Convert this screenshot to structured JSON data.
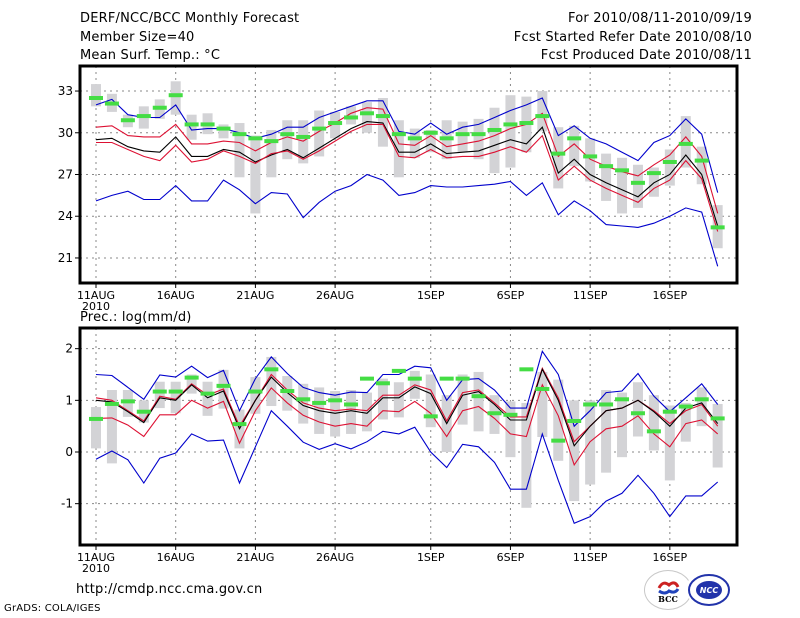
{
  "header": {
    "title": "DERF/NCC/BCC Monthly Forecast",
    "member_size": "Member Size=40",
    "variable_top": "Mean Surf. Temp.: °C",
    "for_range": "For 2010/08/11-2010/09/19",
    "started_date": "Fcst Started Refer Date 2010/08/10",
    "produced_date": "Fcst Produced Date 2010/08/11"
  },
  "footer": {
    "url": "http://cmdp.ncc.cma.gov.cn",
    "grads_credit": "GrADS: COLA/IGES",
    "logo_left": "BCC",
    "logo_right": "NCC"
  },
  "colors": {
    "max_min": "#0000cc",
    "spread": "#dd1133",
    "mean": "#000000",
    "box": "#d3d3d6",
    "marker": "#44dd44",
    "grid": "#888888"
  },
  "chart_data": [
    {
      "type": "line",
      "title": "Mean Surf. Temp.: °C",
      "xlabel": "",
      "ylabel": "°C",
      "ylim": [
        19.2,
        34.8
      ],
      "grid": true,
      "x_start": "2010-08-11",
      "x_ticks": [
        {
          "day": 0,
          "label": "11AUG",
          "sub": "2010"
        },
        {
          "day": 5,
          "label": "16AUG"
        },
        {
          "day": 10,
          "label": "21AUG"
        },
        {
          "day": 15,
          "label": "26AUG"
        },
        {
          "day": 21,
          "label": "1SEP"
        },
        {
          "day": 26,
          "label": "6SEP"
        },
        {
          "day": 31,
          "label": "11SEP"
        },
        {
          "day": 36,
          "label": "16SEP"
        }
      ],
      "y_ticks": [
        21,
        24,
        27,
        30,
        33
      ],
      "series": [
        {
          "name": "ensemble max",
          "role": "max",
          "values": [
            32.0,
            32.4,
            31.3,
            31.1,
            31.1,
            32.0,
            30.2,
            30.3,
            30.3,
            30.0,
            29.6,
            29.9,
            30.4,
            30.4,
            31.1,
            31.5,
            31.9,
            32.3,
            32.3,
            30.1,
            29.9,
            30.7,
            29.9,
            30.4,
            30.6,
            31.1,
            31.6,
            32.0,
            32.5,
            29.8,
            30.5,
            29.6,
            29.2,
            28.6,
            28.0,
            29.3,
            29.8,
            31.0,
            29.9,
            25.7
          ]
        },
        {
          "name": "upper spread",
          "role": "upper",
          "values": [
            30.4,
            30.5,
            29.8,
            29.7,
            29.7,
            30.6,
            29.2,
            29.2,
            29.4,
            29.3,
            28.7,
            29.3,
            29.7,
            29.4,
            30.1,
            30.7,
            31.4,
            31.8,
            31.7,
            29.2,
            29.1,
            29.8,
            29.0,
            29.2,
            29.4,
            29.8,
            30.3,
            30.6,
            31.4,
            28.3,
            29.2,
            28.1,
            27.6,
            27.2,
            26.9,
            27.7,
            28.4,
            29.7,
            28.3,
            24.2
          ]
        },
        {
          "name": "ensemble mean",
          "role": "mean",
          "values": [
            29.5,
            29.6,
            29.0,
            28.7,
            28.6,
            29.7,
            28.3,
            28.3,
            28.8,
            28.6,
            27.9,
            28.4,
            28.8,
            28.2,
            28.9,
            29.6,
            30.3,
            30.8,
            30.7,
            28.6,
            28.6,
            29.2,
            28.5,
            28.6,
            28.7,
            29.1,
            29.5,
            29.2,
            30.4,
            27.1,
            28.1,
            27.0,
            26.4,
            25.9,
            25.4,
            26.4,
            27.0,
            28.4,
            27.0,
            23.3
          ]
        },
        {
          "name": "lower spread",
          "role": "lower",
          "values": [
            29.3,
            29.3,
            28.8,
            28.3,
            28.0,
            29.1,
            27.9,
            28.1,
            28.7,
            28.3,
            27.8,
            28.5,
            28.7,
            28.1,
            28.7,
            29.4,
            30.1,
            30.6,
            30.6,
            28.3,
            28.2,
            28.8,
            28.2,
            28.3,
            28.3,
            28.6,
            29.0,
            28.6,
            29.8,
            26.6,
            27.6,
            26.6,
            26.0,
            25.5,
            25.0,
            26.0,
            26.6,
            28.0,
            26.7,
            22.9
          ]
        },
        {
          "name": "ensemble min",
          "role": "min",
          "values": [
            25.1,
            25.5,
            25.8,
            25.2,
            25.2,
            26.2,
            25.1,
            25.1,
            26.6,
            25.9,
            24.9,
            25.7,
            25.6,
            23.9,
            25.0,
            25.8,
            26.2,
            27.0,
            26.6,
            25.5,
            25.7,
            26.2,
            26.1,
            26.1,
            26.2,
            26.3,
            26.5,
            25.5,
            26.4,
            24.1,
            25.1,
            24.4,
            23.4,
            23.3,
            23.2,
            23.5,
            24.0,
            24.6,
            24.3,
            20.4
          ]
        }
      ],
      "boxes": {
        "name": "member range",
        "low": [
          31.9,
          31.5,
          30.4,
          30.3,
          31.0,
          31.3,
          29.5,
          29.9,
          29.6,
          26.8,
          24.2,
          26.8,
          28.1,
          27.8,
          28.3,
          29.6,
          30.6,
          30.0,
          29.0,
          26.8,
          28.2,
          28.6,
          28.1,
          28.6,
          28.1,
          27.1,
          27.5,
          28.6,
          30.1,
          26.0,
          27.6,
          26.5,
          25.1,
          24.2,
          24.6,
          25.4,
          26.2,
          27.5,
          26.3,
          21.7
        ],
        "high": [
          33.5,
          32.8,
          31.3,
          31.9,
          32.4,
          33.7,
          31.3,
          31.4,
          30.6,
          30.7,
          29.8,
          30.2,
          30.9,
          30.9,
          31.6,
          31.5,
          31.9,
          32.2,
          32.5,
          30.9,
          30.3,
          30.2,
          30.9,
          30.8,
          31.0,
          31.8,
          32.7,
          32.6,
          33.0,
          30.4,
          30.5,
          29.6,
          28.5,
          28.2,
          27.7,
          27.5,
          28.8,
          31.2,
          29.0,
          24.8
        ]
      },
      "markers": {
        "name": "most likely value",
        "values": [
          32.5,
          32.1,
          30.9,
          31.2,
          31.8,
          32.7,
          30.6,
          30.6,
          30.3,
          29.9,
          29.6,
          29.4,
          29.9,
          29.7,
          30.3,
          30.7,
          31.1,
          31.4,
          31.2,
          29.9,
          29.6,
          30.0,
          29.6,
          29.9,
          29.9,
          30.2,
          30.6,
          30.7,
          31.2,
          28.5,
          29.6,
          28.3,
          27.6,
          27.3,
          26.4,
          27.1,
          27.9,
          29.2,
          28.0,
          23.2
        ]
      }
    },
    {
      "type": "line",
      "title": "Prec.: log(mm/d)",
      "xlabel": "",
      "ylabel": "log(mm/d)",
      "ylim": [
        -1.8,
        2.4
      ],
      "grid": true,
      "x_start": "2010-08-11",
      "x_ticks": [
        {
          "day": 0,
          "label": "11AUG",
          "sub": "2010"
        },
        {
          "day": 5,
          "label": "16AUG"
        },
        {
          "day": 10,
          "label": "21AUG"
        },
        {
          "day": 15,
          "label": "26AUG"
        },
        {
          "day": 21,
          "label": "1SEP"
        },
        {
          "day": 26,
          "label": "6SEP"
        },
        {
          "day": 31,
          "label": "11SEP"
        },
        {
          "day": 36,
          "label": "16SEP"
        }
      ],
      "y_ticks": [
        -1,
        0,
        1,
        2
      ],
      "series": [
        {
          "name": "ensemble max",
          "role": "max",
          "values": [
            1.5,
            1.48,
            1.25,
            1.02,
            1.49,
            1.45,
            1.66,
            1.44,
            1.58,
            0.8,
            1.42,
            1.84,
            1.52,
            1.25,
            1.15,
            1.1,
            1.16,
            1.15,
            1.5,
            1.5,
            1.66,
            1.63,
            1.0,
            1.4,
            1.42,
            1.2,
            0.85,
            0.85,
            1.95,
            1.5,
            0.5,
            0.8,
            1.15,
            1.18,
            1.52,
            1.08,
            0.78,
            1.05,
            1.32,
            0.92
          ]
        },
        {
          "name": "upper spread",
          "role": "upper",
          "values": [
            1.05,
            1.0,
            0.8,
            0.6,
            1.08,
            1.02,
            1.32,
            1.1,
            1.22,
            0.5,
            1.0,
            1.5,
            1.2,
            0.95,
            0.85,
            0.8,
            0.83,
            0.8,
            1.1,
            1.1,
            1.3,
            1.2,
            0.6,
            1.15,
            1.2,
            0.95,
            0.68,
            0.68,
            1.62,
            1.05,
            0.2,
            0.5,
            0.8,
            0.85,
            1.0,
            0.8,
            0.55,
            0.8,
            0.92,
            0.5
          ]
        },
        {
          "name": "ensemble mean",
          "role": "mean",
          "values": [
            1.0,
            0.97,
            0.78,
            0.57,
            1.05,
            1.0,
            1.3,
            1.05,
            1.18,
            0.45,
            1.0,
            1.45,
            1.15,
            0.9,
            0.8,
            0.75,
            0.8,
            0.75,
            1.05,
            1.05,
            1.26,
            1.13,
            0.55,
            1.1,
            1.17,
            0.92,
            0.62,
            0.62,
            1.6,
            1.0,
            0.12,
            0.5,
            0.8,
            0.85,
            1.0,
            0.78,
            0.5,
            0.85,
            0.95,
            0.55
          ]
        },
        {
          "name": "lower spread",
          "role": "lower",
          "values": [
            0.65,
            0.66,
            0.52,
            0.3,
            0.72,
            0.72,
            1.0,
            0.85,
            0.98,
            0.17,
            0.8,
            1.24,
            0.95,
            0.71,
            0.58,
            0.5,
            0.55,
            0.5,
            0.8,
            0.78,
            0.98,
            0.75,
            0.3,
            0.8,
            0.88,
            0.65,
            0.35,
            0.3,
            1.3,
            0.7,
            -0.25,
            0.2,
            0.45,
            0.5,
            0.7,
            0.35,
            0.1,
            0.55,
            0.62,
            0.35
          ]
        },
        {
          "name": "ensemble min",
          "role": "min",
          "values": [
            -0.14,
            0.02,
            -0.15,
            -0.6,
            -0.12,
            -0.02,
            0.35,
            0.21,
            0.23,
            -0.6,
            0.1,
            0.8,
            0.5,
            0.19,
            0.05,
            0.16,
            0.06,
            0.2,
            0.4,
            0.35,
            0.48,
            0.0,
            -0.3,
            0.15,
            0.1,
            -0.2,
            -0.72,
            -0.72,
            0.35,
            -0.55,
            -1.38,
            -1.25,
            -0.95,
            -0.8,
            -0.45,
            -0.8,
            -1.25,
            -0.85,
            -0.85,
            -0.58
          ]
        }
      ],
      "boxes": {
        "name": "member range",
        "low": [
          0.07,
          -0.22,
          0.68,
          0.57,
          0.85,
          0.75,
          1.13,
          0.7,
          0.84,
          0.07,
          0.74,
          0.89,
          0.8,
          0.55,
          0.35,
          0.3,
          0.35,
          0.4,
          0.63,
          0.67,
          1.03,
          0.48,
          0.0,
          0.53,
          0.4,
          0.35,
          -0.1,
          -1.08,
          0.29,
          -0.17,
          -0.95,
          -0.63,
          -0.4,
          -0.1,
          0.3,
          0.03,
          -0.55,
          0.2,
          0.5,
          -0.3
        ],
        "high": [
          0.87,
          1.2,
          1.2,
          1.0,
          1.36,
          1.36,
          1.5,
          1.36,
          1.59,
          0.82,
          1.45,
          1.84,
          1.47,
          1.32,
          1.25,
          1.18,
          1.2,
          1.15,
          1.42,
          1.35,
          1.57,
          1.5,
          1.1,
          1.5,
          1.55,
          1.1,
          0.98,
          0.95,
          1.55,
          1.4,
          1.0,
          1.0,
          1.2,
          1.15,
          1.35,
          1.1,
          0.9,
          0.95,
          1.25,
          0.93
        ]
      },
      "markers": {
        "name": "most likely value",
        "values": [
          0.64,
          0.93,
          0.98,
          0.78,
          1.17,
          1.17,
          1.44,
          1.13,
          1.28,
          0.54,
          1.17,
          1.6,
          1.18,
          1.02,
          0.95,
          1.0,
          0.92,
          1.42,
          1.33,
          1.57,
          1.42,
          0.69,
          1.42,
          1.42,
          1.08,
          0.75,
          0.72,
          1.6,
          1.22,
          0.22,
          0.6,
          0.92,
          0.92,
          1.02,
          0.75,
          0.4,
          0.78,
          0.88,
          1.02,
          0.65
        ]
      }
    }
  ]
}
